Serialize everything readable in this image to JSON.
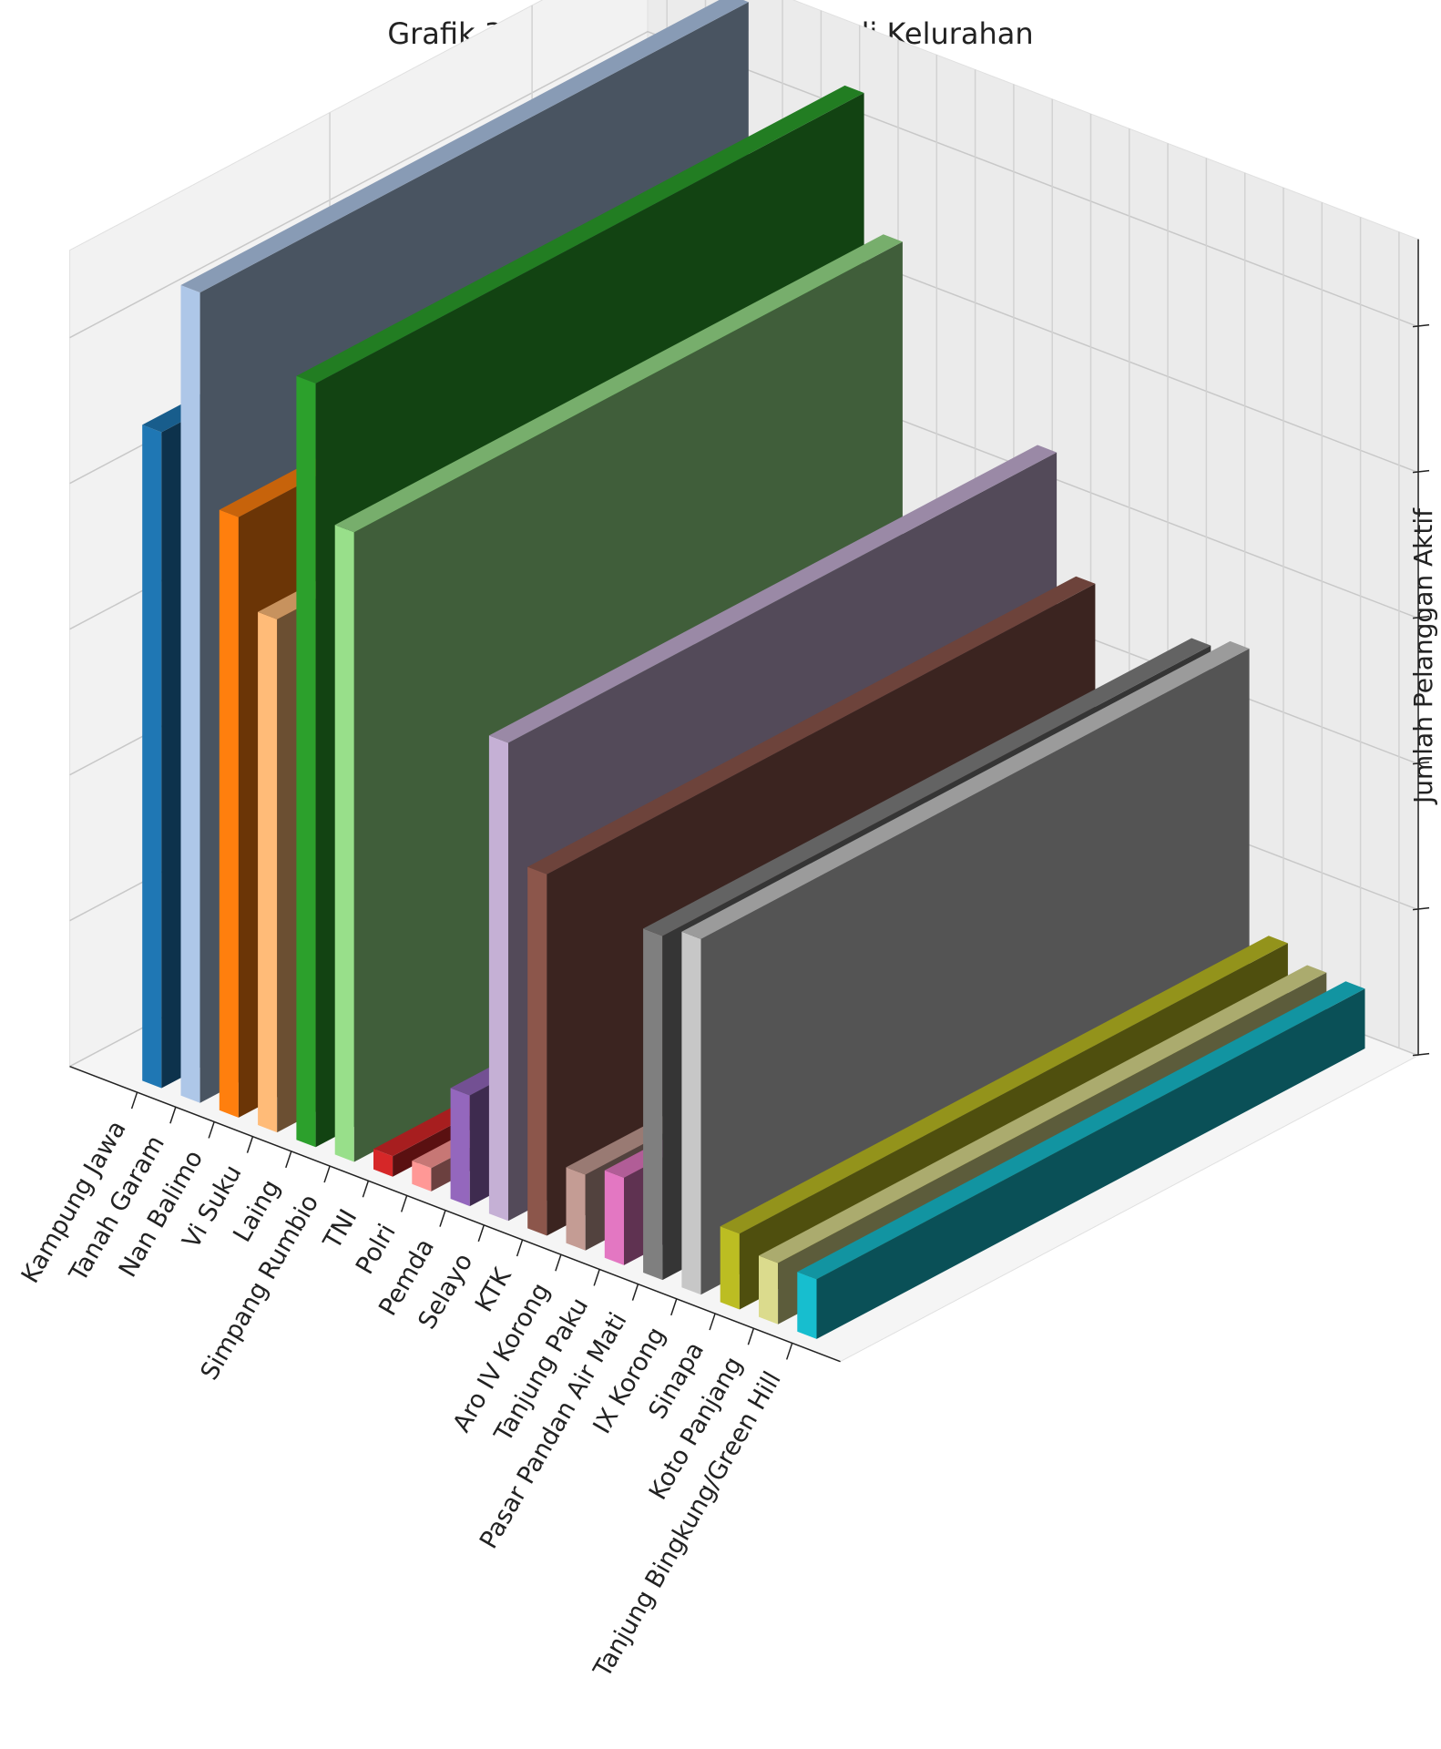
{
  "chart_data": {
    "type": "bar",
    "title": "Grafik 3D Data Pelanggan Aktif di Kelurahan",
    "xlabel": "",
    "ylabel": "",
    "zlabel": "Jumlah Pelanggan Aktif",
    "zlim": [
      0,
      2800
    ],
    "zticks": [
      0,
      500,
      1000,
      1500,
      2000,
      2500
    ],
    "grid": true,
    "categories": [
      "Kampung Jawa",
      "Tanah Garam",
      "Nan Balimo",
      "Vi Suku",
      "Laing",
      "Simpang Rumbio",
      "TNI",
      "Polri",
      "Pemda",
      "Selayo",
      "KTK",
      "Aro IV Korong",
      "Tanjung Paku",
      "Pasar Pandan Air Mati",
      "IX Korong",
      "Sinapa",
      "Koto Panjang",
      "Tanjung Bingkung/Green Hill"
    ],
    "values": [
      2250,
      2780,
      2060,
      1760,
      2620,
      2160,
      70,
      80,
      380,
      1640,
      1240,
      260,
      300,
      1180,
      1220,
      260,
      210,
      205
    ],
    "colors": [
      "#1f77b4",
      "#aec7e8",
      "#ff7f0e",
      "#ffbb78",
      "#2ca02c",
      "#98df8a",
      "#d62728",
      "#ff9896",
      "#9467bd",
      "#c5b0d5",
      "#8c564b",
      "#c49c94",
      "#e377c2",
      "#7f7f7f",
      "#c7c7c7",
      "#bcbd22",
      "#dbdb8d",
      "#17becf",
      "#9edae5"
    ]
  }
}
